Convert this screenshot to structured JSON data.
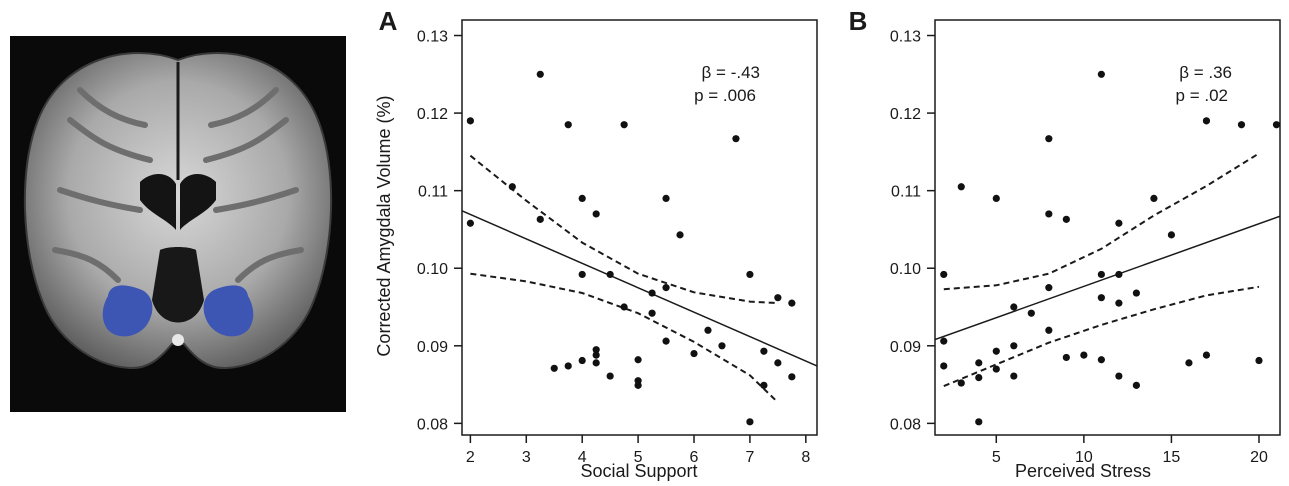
{
  "figure": {
    "brain_image": {
      "icon": "brain-mri-coronal-icon",
      "highlight_color": "#3d55b3"
    }
  },
  "chart_data": [
    {
      "type": "scatter",
      "panel_label": "A",
      "xlabel": "Social Support",
      "ylabel": "Corrected Amygdala Volume (%)",
      "xlim": [
        1.85,
        8.2
      ],
      "ylim": [
        0.0785,
        0.132
      ],
      "xticks": [
        2,
        3,
        4,
        5,
        6,
        7,
        8
      ],
      "yticks": [
        0.08,
        0.09,
        0.1,
        0.11,
        0.12,
        0.13
      ],
      "ytick_labels": [
        "0.08",
        "0.09",
        "0.10",
        "0.11",
        "0.12",
        "0.13"
      ],
      "grid": false,
      "annotation_lines": [
        "β = -.43",
        "p = .006"
      ],
      "points": [
        [
          2.0,
          0.119
        ],
        [
          2.0,
          0.1058
        ],
        [
          2.75,
          0.1105
        ],
        [
          3.25,
          0.125
        ],
        [
          3.25,
          0.1063
        ],
        [
          3.5,
          0.0871
        ],
        [
          3.75,
          0.1185
        ],
        [
          3.75,
          0.0874
        ],
        [
          4.0,
          0.109
        ],
        [
          4.0,
          0.0992
        ],
        [
          4.0,
          0.0881
        ],
        [
          4.25,
          0.107
        ],
        [
          4.25,
          0.0895
        ],
        [
          4.25,
          0.0888
        ],
        [
          4.25,
          0.0878
        ],
        [
          4.5,
          0.0992
        ],
        [
          4.5,
          0.0861
        ],
        [
          4.75,
          0.1185
        ],
        [
          4.75,
          0.095
        ],
        [
          5.0,
          0.0882
        ],
        [
          5.0,
          0.0855
        ],
        [
          5.0,
          0.0849
        ],
        [
          5.25,
          0.0968
        ],
        [
          5.25,
          0.0942
        ],
        [
          5.5,
          0.109
        ],
        [
          5.5,
          0.0975
        ],
        [
          5.5,
          0.0906
        ],
        [
          5.75,
          0.1043
        ],
        [
          6.0,
          0.089
        ],
        [
          6.25,
          0.092
        ],
        [
          6.5,
          0.09
        ],
        [
          6.75,
          0.1167
        ],
        [
          7.0,
          0.0992
        ],
        [
          7.0,
          0.0802
        ],
        [
          7.25,
          0.0893
        ],
        [
          7.25,
          0.0849
        ],
        [
          7.5,
          0.0962
        ],
        [
          7.5,
          0.0878
        ],
        [
          7.75,
          0.0955
        ],
        [
          7.75,
          0.086
        ]
      ],
      "fit_line": [
        [
          1.85,
          0.1074
        ],
        [
          8.2,
          0.0874
        ]
      ],
      "ci_upper": [
        [
          2.0,
          0.1145
        ],
        [
          3.0,
          0.1087
        ],
        [
          4.0,
          0.1033
        ],
        [
          5.0,
          0.0993
        ],
        [
          6.0,
          0.0969
        ],
        [
          7.0,
          0.0957
        ],
        [
          7.5,
          0.0955
        ]
      ],
      "ci_lower": [
        [
          2.0,
          0.0993
        ],
        [
          3.0,
          0.0983
        ],
        [
          4.0,
          0.0968
        ],
        [
          5.0,
          0.0942
        ],
        [
          6.0,
          0.0905
        ],
        [
          7.0,
          0.0862
        ],
        [
          7.5,
          0.0827
        ]
      ]
    },
    {
      "type": "scatter",
      "panel_label": "B",
      "xlabel": "Perceived Stress",
      "ylabel": "",
      "xlim": [
        1.5,
        21.2
      ],
      "ylim": [
        0.0785,
        0.132
      ],
      "xticks": [
        5,
        10,
        15,
        20
      ],
      "yticks": [
        0.08,
        0.09,
        0.1,
        0.11,
        0.12,
        0.13
      ],
      "ytick_labels": [
        "0.08",
        "0.09",
        "0.10",
        "0.11",
        "0.12",
        "0.13"
      ],
      "grid": false,
      "annotation_lines": [
        "β = .36",
        "p = .02"
      ],
      "points": [
        [
          2,
          0.0992
        ],
        [
          2,
          0.0906
        ],
        [
          2,
          0.0874
        ],
        [
          3,
          0.1105
        ],
        [
          3,
          0.0852
        ],
        [
          4,
          0.0878
        ],
        [
          4,
          0.0859
        ],
        [
          4,
          0.0802
        ],
        [
          5,
          0.109
        ],
        [
          5,
          0.0893
        ],
        [
          5,
          0.087
        ],
        [
          6,
          0.095
        ],
        [
          6,
          0.09
        ],
        [
          6,
          0.0861
        ],
        [
          7,
          0.0942
        ],
        [
          8,
          0.1167
        ],
        [
          8,
          0.107
        ],
        [
          8,
          0.0975
        ],
        [
          8,
          0.092
        ],
        [
          9,
          0.1063
        ],
        [
          9,
          0.0885
        ],
        [
          10,
          0.0888
        ],
        [
          11,
          0.125
        ],
        [
          11,
          0.0992
        ],
        [
          11,
          0.0962
        ],
        [
          11,
          0.0882
        ],
        [
          12,
          0.1058
        ],
        [
          12,
          0.0992
        ],
        [
          12,
          0.0955
        ],
        [
          12,
          0.0861
        ],
        [
          13,
          0.0968
        ],
        [
          13,
          0.0849
        ],
        [
          14,
          0.109
        ],
        [
          15,
          0.1043
        ],
        [
          16,
          0.0878
        ],
        [
          17,
          0.119
        ],
        [
          17,
          0.0888
        ],
        [
          19,
          0.1185
        ],
        [
          20,
          0.0881
        ],
        [
          21,
          0.1185
        ]
      ],
      "fit_line": [
        [
          1.5,
          0.0908
        ],
        [
          21.2,
          0.1067
        ]
      ],
      "ci_upper": [
        [
          2,
          0.0973
        ],
        [
          5,
          0.0978
        ],
        [
          8,
          0.0993
        ],
        [
          11,
          0.1025
        ],
        [
          14,
          0.1068
        ],
        [
          17,
          0.1106
        ],
        [
          20,
          0.1148
        ]
      ],
      "ci_lower": [
        [
          2,
          0.0848
        ],
        [
          5,
          0.0876
        ],
        [
          8,
          0.0904
        ],
        [
          11,
          0.0927
        ],
        [
          14,
          0.0947
        ],
        [
          17,
          0.0965
        ],
        [
          20,
          0.0976
        ]
      ]
    }
  ]
}
